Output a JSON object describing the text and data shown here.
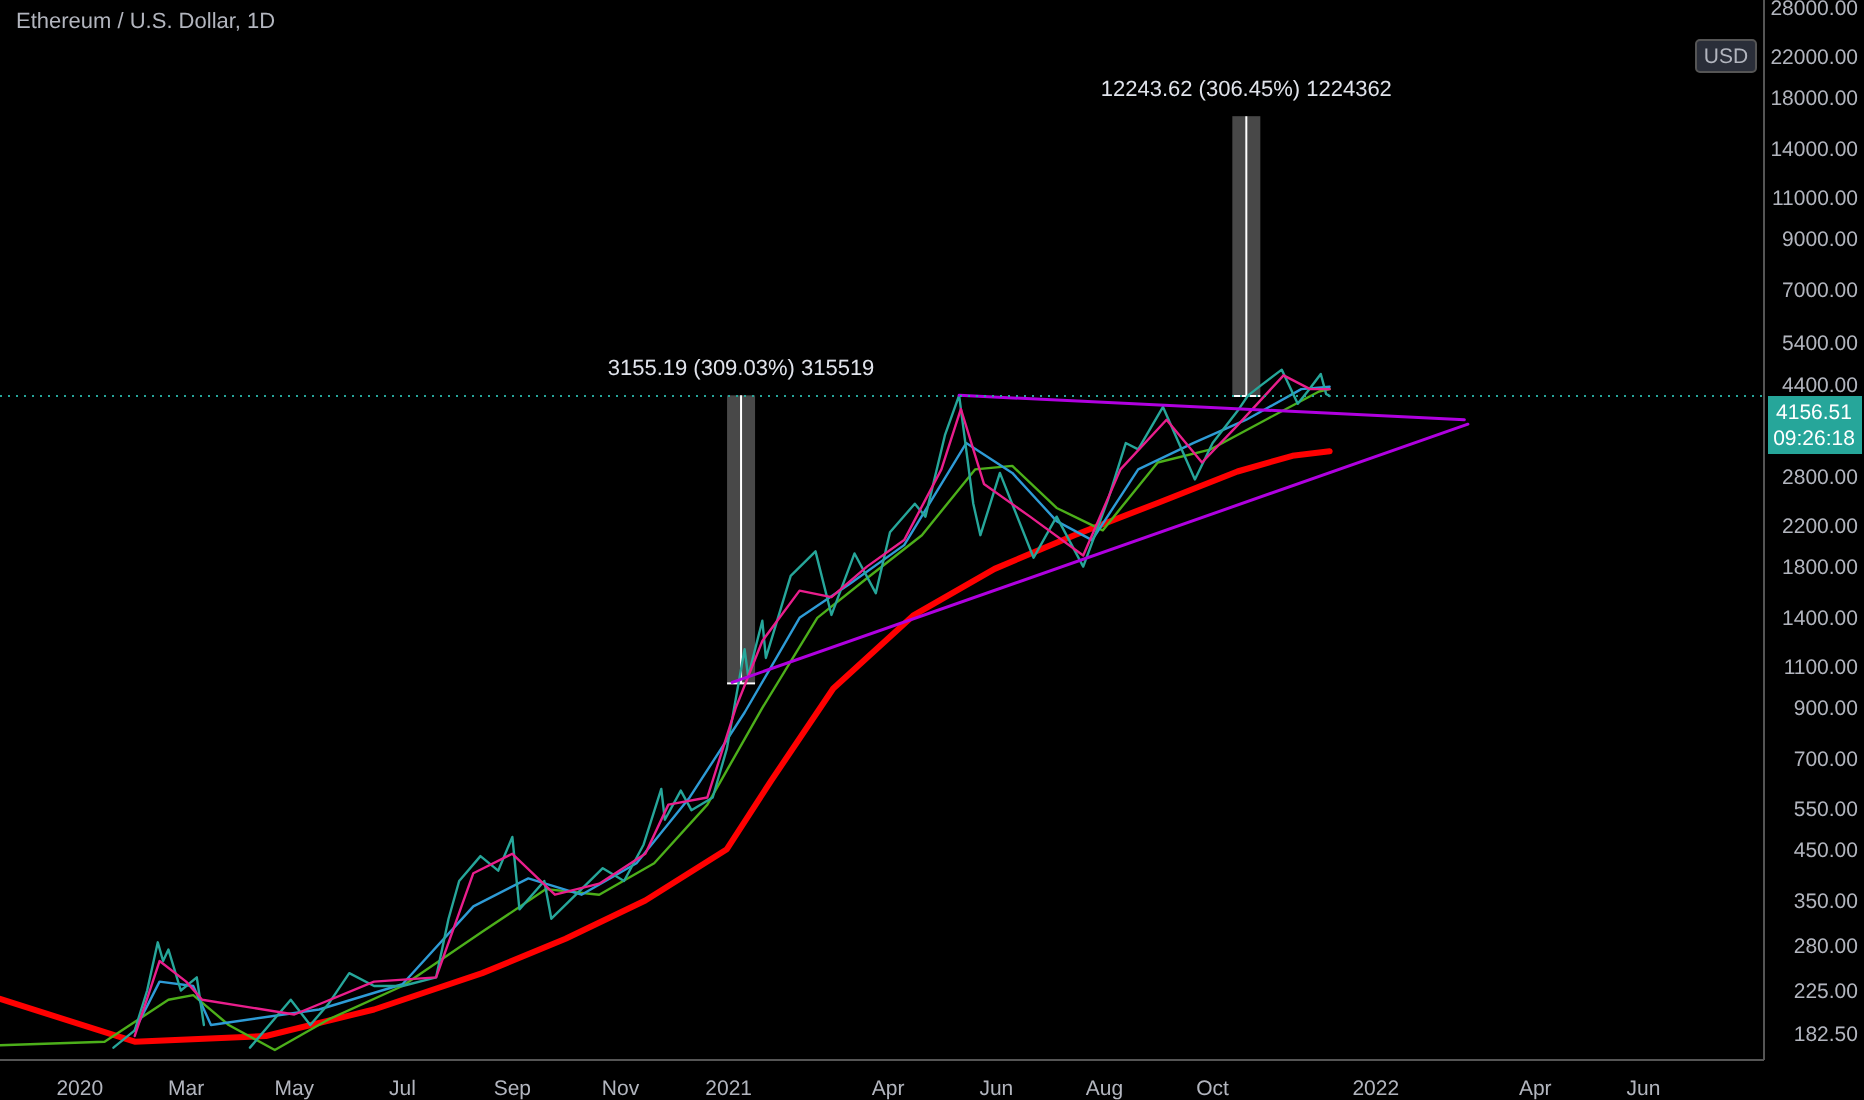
{
  "chart_data": {
    "type": "line",
    "title": "Ethereum / U.S. Dollar, 1D",
    "log": "y",
    "xlim": [
      "2019-11-17",
      "2022-08-08"
    ],
    "ylim": [
      160,
      29000
    ],
    "xticks": [
      {
        "value": "2020-01-01",
        "label": "2020"
      },
      {
        "value": "2020-03-01",
        "label": "Mar"
      },
      {
        "value": "2020-05-01",
        "label": "May"
      },
      {
        "value": "2020-07-01",
        "label": "Jul"
      },
      {
        "value": "2020-09-01",
        "label": "Sep"
      },
      {
        "value": "2020-11-01",
        "label": "Nov"
      },
      {
        "value": "2021-01-01",
        "label": "2021"
      },
      {
        "value": "2021-04-01",
        "label": "Apr"
      },
      {
        "value": "2021-06-01",
        "label": "Jun"
      },
      {
        "value": "2021-08-01",
        "label": "Aug"
      },
      {
        "value": "2021-10-01",
        "label": "Oct"
      },
      {
        "value": "2022-01-01",
        "label": "2022"
      },
      {
        "value": "2022-04-01",
        "label": "Apr"
      },
      {
        "value": "2022-06-01",
        "label": "Jun"
      }
    ],
    "yticks": [
      {
        "value": 182.5,
        "label": "182.50"
      },
      {
        "value": 225,
        "label": "225.00"
      },
      {
        "value": 280,
        "label": "280.00"
      },
      {
        "value": 350,
        "label": "350.00"
      },
      {
        "value": 450,
        "label": "450.00"
      },
      {
        "value": 550,
        "label": "550.00"
      },
      {
        "value": 700,
        "label": "700.00"
      },
      {
        "value": 900,
        "label": "900.00"
      },
      {
        "value": 1100,
        "label": "1100.00"
      },
      {
        "value": 1400,
        "label": "1400.00"
      },
      {
        "value": 1800,
        "label": "1800.00"
      },
      {
        "value": 2200,
        "label": "2200.00"
      },
      {
        "value": 2800,
        "label": "2800.00"
      },
      {
        "value": 4400,
        "label": "4400.00"
      },
      {
        "value": 5400,
        "label": "5400.00"
      },
      {
        "value": 7000,
        "label": "7000.00"
      },
      {
        "value": 9000,
        "label": "9000.00"
      },
      {
        "value": 11000,
        "label": "11000.00"
      },
      {
        "value": 14000,
        "label": "14000.00"
      },
      {
        "value": 18000,
        "label": "18000.00"
      },
      {
        "value": 22000,
        "label": "22000.00"
      },
      {
        "value": 28000,
        "label": "28000.00"
      }
    ],
    "series": [
      {
        "type": "bar",
        "color": "#5a5a5a",
        "x": [
          "2021-01-08"
        ],
        "base": [
          1015
        ],
        "values": [
          3155.19
        ]
      },
      {
        "type": "bar",
        "color": "#5a5a5a",
        "x": [
          "2021-10-20"
        ],
        "base": [
          4156.51
        ],
        "values": [
          12243.62
        ]
      },
      {
        "color": "#ff0000",
        "x": [
          "2019-11-17",
          "2020-02-01",
          "2020-04-15",
          "2020-06-15",
          "2020-08-15",
          "2020-10-01",
          "2020-11-15",
          "2020-12-31",
          "2021-01-25",
          "2021-03-01",
          "2021-04-15",
          "2021-05-31",
          "2021-07-15",
          "2021-08-31",
          "2021-10-15",
          "2021-11-15",
          "2021-12-06"
        ],
        "values": [
          216,
          175,
          180,
          205,
          245,
          290,
          350,
          450,
          630,
          990,
          1415,
          1780,
          2100,
          2460,
          2870,
          3100,
          3170
        ]
      },
      {
        "color": "#4caf1a",
        "x": [
          "2019-11-17",
          "2020-01-15",
          "2020-02-20",
          "2020-03-05",
          "2020-03-25",
          "2020-04-20",
          "2020-05-20",
          "2020-07-01",
          "2020-08-15",
          "2020-09-20",
          "2020-10-20",
          "2020-11-20",
          "2020-12-20",
          "2021-01-20",
          "2021-02-20",
          "2021-03-20",
          "2021-04-20",
          "2021-05-20",
          "2021-06-10",
          "2021-07-05",
          "2021-07-31",
          "2021-08-31",
          "2021-09-30",
          "2021-10-31",
          "2021-11-30",
          "2021-12-06"
        ],
        "values": [
          172,
          175,
          215,
          220,
          190,
          168,
          195,
          230,
          300,
          370,
          360,
          420,
          560,
          900,
          1400,
          1700,
          2100,
          2900,
          2950,
          2400,
          2150,
          3000,
          3200,
          3700,
          4250,
          4300
        ]
      },
      {
        "color": "#2e9bd6",
        "x": [
          "2020-02-01",
          "2020-02-15",
          "2020-03-05",
          "2020-03-15",
          "2020-05-15",
          "2020-07-01",
          "2020-08-10",
          "2020-09-10",
          "2020-10-10",
          "2020-11-10",
          "2020-12-10",
          "2021-01-10",
          "2021-02-10",
          "2021-03-10",
          "2021-04-10",
          "2021-05-15",
          "2021-06-10",
          "2021-07-05",
          "2021-07-25",
          "2021-08-20",
          "2021-09-20",
          "2021-10-20",
          "2021-11-20",
          "2021-12-06"
        ],
        "values": [
          185,
          235,
          230,
          190,
          205,
          232,
          340,
          390,
          360,
          420,
          580,
          880,
          1400,
          1650,
          2000,
          3300,
          2850,
          2250,
          2050,
          2900,
          3300,
          3700,
          4300,
          4350
        ]
      },
      {
        "color": "#26a69a",
        "x": [
          "2020-01-20",
          "2020-02-01",
          "2020-02-08",
          "2020-02-14",
          "2020-02-17",
          "2020-02-20",
          "2020-02-27",
          "2020-03-07",
          "2020-03-11",
          "2020-03-12",
          "2020-04-06",
          "2020-04-29",
          "2020-05-10",
          "2020-05-20",
          "2020-06-01",
          "2020-06-15",
          "2020-07-01",
          "2020-07-20",
          "2020-07-27",
          "2020-08-02",
          "2020-08-14",
          "2020-08-24",
          "2020-09-01",
          "2020-09-05",
          "2020-09-19",
          "2020-09-23",
          "2020-10-10",
          "2020-10-22",
          "2020-11-03",
          "2020-11-14",
          "2020-11-24",
          "2020-11-26",
          "2020-12-05",
          "2020-12-11",
          "2020-12-23",
          "2020-12-31",
          "2021-01-10",
          "2021-01-12",
          "2021-01-20",
          "2021-01-22",
          "2021-02-05",
          "2021-02-19",
          "2021-02-28",
          "2021-03-13",
          "2021-03-25",
          "2021-04-02",
          "2021-04-16",
          "2021-04-22",
          "2021-05-03",
          "2021-05-11",
          "2021-05-19",
          "2021-05-23",
          "2021-06-03",
          "2021-06-22",
          "2021-07-05",
          "2021-07-20",
          "2021-08-03",
          "2021-08-13",
          "2021-08-20",
          "2021-09-03",
          "2021-09-21",
          "2021-10-01",
          "2021-10-15",
          "2021-10-21",
          "2021-10-29",
          "2021-11-09",
          "2021-11-18",
          "2021-11-24",
          "2021-12-01",
          "2021-12-04",
          "2021-12-06"
        ],
        "values": [
          170,
          185,
          225,
          285,
          260,
          275,
          225,
          240,
          190,
          null,
          170,
          215,
          190,
          210,
          245,
          230,
          230,
          240,
          320,
          385,
          435,
          405,
          478,
          335,
          385,
          320,
          370,
          410,
          385,
          460,
          605,
          520,
          600,
          545,
          580,
          737,
          1200,
          1050,
          1380,
          1150,
          1720,
          1940,
          1420,
          1920,
          1580,
          2130,
          2450,
          2300,
          3430,
          4170,
          2450,
          2100,
          2850,
          1880,
          2300,
          1800,
          2500,
          3300,
          3200,
          3940,
          2760,
          3300,
          3860,
          4170,
          4400,
          4730,
          4000,
          4270,
          4630,
          4200,
          4156.51
        ]
      },
      {
        "color": "#e91e8c",
        "x": [
          "2020-02-01",
          "2020-02-15",
          "2020-03-01",
          "2020-03-10",
          "2020-05-01",
          "2020-06-15",
          "2020-07-20",
          "2020-08-10",
          "2020-09-01",
          "2020-09-25",
          "2020-10-20",
          "2020-11-15",
          "2020-11-28",
          "2020-12-20",
          "2021-01-05",
          "2021-01-20",
          "2021-02-10",
          "2021-02-28",
          "2021-03-20",
          "2021-04-10",
          "2021-05-01",
          "2021-05-12",
          "2021-05-25",
          "2021-06-20",
          "2021-07-20",
          "2021-08-10",
          "2021-09-05",
          "2021-09-25",
          "2021-10-15",
          "2021-11-10",
          "2021-11-25",
          "2021-12-06"
        ],
        "values": [
          180,
          260,
          235,
          215,
          200,
          235,
          240,
          400,
          440,
          360,
          380,
          440,
          560,
          580,
          900,
          1250,
          1600,
          1550,
          1800,
          2050,
          2900,
          3900,
          2700,
          2300,
          1900,
          2900,
          3700,
          3000,
          3600,
          4600,
          4300,
          4300
        ]
      },
      {
        "color": "#b000e0",
        "x": [
          "2021-05-11",
          "2022-02-20"
        ],
        "values": [
          4170,
          3700
        ]
      },
      {
        "color": "#b000e0",
        "x": [
          "2021-01-03",
          "2022-02-22"
        ],
        "values": [
          1020,
          3620
        ]
      }
    ],
    "ref_lines": [
      {
        "axis": "y",
        "value": 4156.51,
        "label": "4156.51",
        "color": "#26a69a",
        "line_style": "dotted"
      }
    ],
    "annotations": [
      "USD",
      "09:26:18",
      {
        "text": "3155.19 (309.03%) 315519",
        "x": "2021-01-08",
        "y": 4170
      },
      {
        "text": "12243.62 (306.45%) 1224362",
        "x": "2021-10-20",
        "y": 16400
      }
    ]
  }
}
